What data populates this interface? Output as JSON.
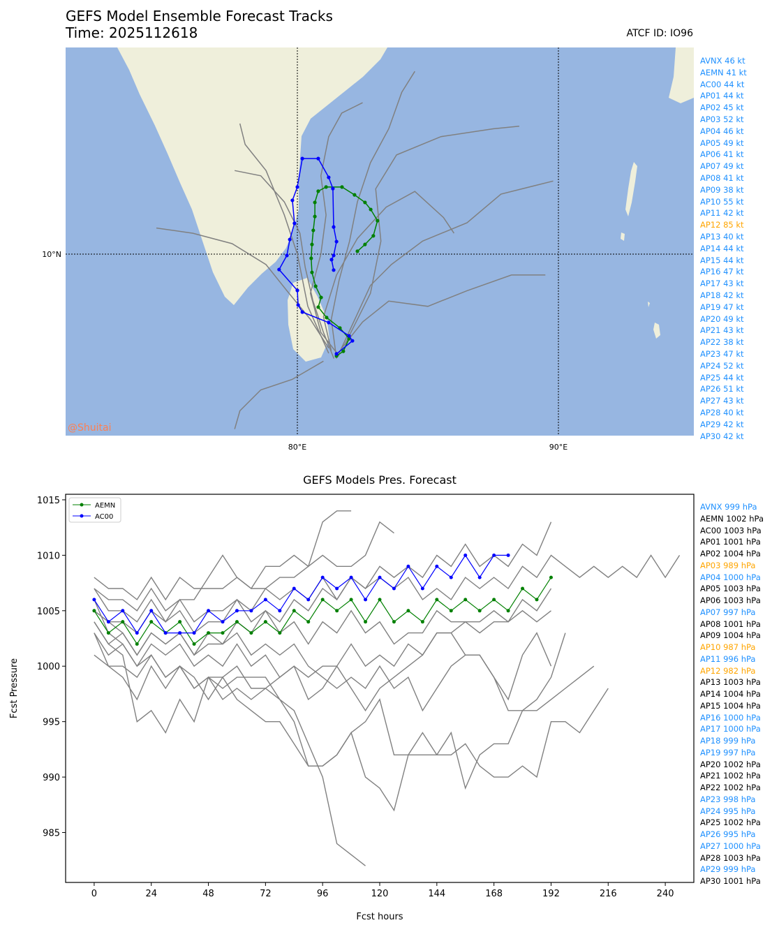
{
  "header": {
    "title": "GEFS Model Ensemble Forecast Tracks",
    "time": "Time: 2025112618",
    "atcf": "ATCF ID: IO96"
  },
  "colors": {
    "ocean": "#97b6e1",
    "land": "#efefdb",
    "track": "#808080",
    "aemn": "#008000",
    "ac00": "#0000ff",
    "blue_text": "#1e90ff",
    "orange_text": "#ffa500",
    "watermark": "#ff7f50"
  },
  "map": {
    "watermark": "@Shuitai",
    "lat_label": "10°N",
    "lon_labels": [
      "80°E",
      "90°E"
    ],
    "extent": {
      "lon": [
        71.1,
        95.2
      ],
      "lat": [
        3.05,
        17.9
      ]
    },
    "aemn_track": [
      [
        81.5,
        6.1
      ],
      [
        81.76,
        6.28
      ],
      [
        81.98,
        6.76
      ],
      [
        81.63,
        7.17
      ],
      [
        81.12,
        7.57
      ],
      [
        80.8,
        7.97
      ],
      [
        80.91,
        8.34
      ],
      [
        80.7,
        8.77
      ],
      [
        80.56,
        9.3
      ],
      [
        80.53,
        9.84
      ],
      [
        80.56,
        10.37
      ],
      [
        80.61,
        10.91
      ],
      [
        80.67,
        11.44
      ],
      [
        80.67,
        11.98
      ],
      [
        80.8,
        12.41
      ],
      [
        81.1,
        12.57
      ],
      [
        81.71,
        12.57
      ],
      [
        82.19,
        12.27
      ],
      [
        82.59,
        11.98
      ],
      [
        82.81,
        11.71
      ],
      [
        83.07,
        11.28
      ],
      [
        82.91,
        10.7
      ],
      [
        82.59,
        10.37
      ],
      [
        82.3,
        10.11
      ]
    ],
    "ac00_track": [
      [
        81.5,
        6.18
      ],
      [
        82.11,
        6.68
      ],
      [
        81.98,
        6.87
      ],
      [
        81.2,
        7.38
      ],
      [
        80.19,
        7.78
      ],
      [
        80.03,
        8.05
      ],
      [
        80.0,
        8.61
      ],
      [
        79.3,
        9.41
      ],
      [
        79.6,
        9.95
      ],
      [
        79.71,
        10.56
      ],
      [
        79.89,
        11.18
      ],
      [
        79.81,
        12.06
      ],
      [
        80.0,
        12.57
      ],
      [
        80.19,
        13.66
      ],
      [
        80.8,
        13.66
      ],
      [
        81.2,
        12.94
      ],
      [
        81.36,
        12.51
      ],
      [
        81.39,
        11.04
      ],
      [
        81.5,
        10.48
      ],
      [
        81.39,
        9.95
      ],
      [
        81.31,
        9.79
      ],
      [
        81.39,
        9.39
      ]
    ],
    "gray_tracks": [
      [
        [
          81.4,
          6.0
        ],
        [
          81.0,
          7.0
        ],
        [
          80.6,
          8.2
        ],
        [
          80.3,
          9.5
        ],
        [
          80.1,
          10.8
        ],
        [
          79.5,
          12.0
        ],
        [
          78.6,
          13.0
        ],
        [
          77.6,
          13.2
        ]
      ],
      [
        [
          81.6,
          6.2
        ],
        [
          82.2,
          7.5
        ],
        [
          82.8,
          8.8
        ],
        [
          83.6,
          9.6
        ],
        [
          84.8,
          10.5
        ],
        [
          86.5,
          11.2
        ],
        [
          87.8,
          12.3
        ],
        [
          89.8,
          12.8
        ]
      ],
      [
        [
          81.7,
          6.4
        ],
        [
          82.5,
          7.4
        ],
        [
          83.5,
          8.2
        ],
        [
          85.0,
          8.0
        ],
        [
          86.5,
          8.6
        ],
        [
          88.2,
          9.2
        ],
        [
          89.5,
          9.2
        ]
      ],
      [
        [
          81.2,
          6.4
        ],
        [
          80.5,
          7.5
        ],
        [
          79.6,
          8.6
        ],
        [
          78.8,
          9.6
        ],
        [
          77.5,
          10.4
        ],
        [
          76.0,
          10.8
        ],
        [
          74.6,
          11.0
        ]
      ],
      [
        [
          81.5,
          6.0
        ],
        [
          81.3,
          7.5
        ],
        [
          81.6,
          9.0
        ],
        [
          82.0,
          10.5
        ],
        [
          82.3,
          12.0
        ],
        [
          82.8,
          13.5
        ],
        [
          83.5,
          14.8
        ],
        [
          84.0,
          16.2
        ],
        [
          84.5,
          17.0
        ]
      ],
      [
        [
          81.3,
          6.3
        ],
        [
          81.0,
          7.6
        ],
        [
          81.5,
          9.2
        ],
        [
          82.3,
          10.6
        ],
        [
          83.4,
          11.8
        ],
        [
          84.5,
          12.4
        ],
        [
          85.6,
          11.4
        ],
        [
          86.0,
          10.8
        ]
      ],
      [
        [
          81.0,
          5.9
        ],
        [
          79.8,
          5.2
        ],
        [
          78.6,
          4.8
        ],
        [
          77.8,
          4.0
        ],
        [
          77.6,
          3.3
        ]
      ],
      [
        [
          81.8,
          6.5
        ],
        [
          82.8,
          8.5
        ],
        [
          83.2,
          10.5
        ],
        [
          83.0,
          12.5
        ],
        [
          83.8,
          13.8
        ],
        [
          85.5,
          14.5
        ],
        [
          87.5,
          14.8
        ],
        [
          88.5,
          14.9
        ]
      ],
      [
        [
          81.2,
          6.2
        ],
        [
          80.4,
          8.0
        ],
        [
          80.0,
          10.0
        ],
        [
          79.5,
          11.5
        ],
        [
          78.8,
          13.2
        ],
        [
          78.0,
          14.2
        ],
        [
          77.8,
          15.0
        ]
      ],
      [
        [
          81.6,
          6.1
        ],
        [
          80.9,
          7.0
        ],
        [
          80.5,
          8.5
        ],
        [
          80.9,
          10.0
        ],
        [
          81.1,
          11.5
        ],
        [
          80.9,
          13.0
        ],
        [
          81.2,
          14.5
        ],
        [
          81.7,
          15.4
        ],
        [
          82.5,
          15.8
        ]
      ]
    ]
  },
  "wind_list": [
    {
      "text": "AVNX 46 kt",
      "color": "#1e90ff"
    },
    {
      "text": "AEMN 41 kt",
      "color": "#1e90ff"
    },
    {
      "text": "AC00 44 kt",
      "color": "#1e90ff"
    },
    {
      "text": "AP01 44 kt",
      "color": "#1e90ff"
    },
    {
      "text": "AP02 45 kt",
      "color": "#1e90ff"
    },
    {
      "text": "AP03 52 kt",
      "color": "#1e90ff"
    },
    {
      "text": "AP04 46 kt",
      "color": "#1e90ff"
    },
    {
      "text": "AP05 49 kt",
      "color": "#1e90ff"
    },
    {
      "text": "AP06 41 kt",
      "color": "#1e90ff"
    },
    {
      "text": "AP07 49 kt",
      "color": "#1e90ff"
    },
    {
      "text": "AP08 41 kt",
      "color": "#1e90ff"
    },
    {
      "text": "AP09 38 kt",
      "color": "#1e90ff"
    },
    {
      "text": "AP10 55 kt",
      "color": "#1e90ff"
    },
    {
      "text": "AP11 42 kt",
      "color": "#1e90ff"
    },
    {
      "text": "AP12 85 kt",
      "color": "#ffa500"
    },
    {
      "text": "AP13 40 kt",
      "color": "#1e90ff"
    },
    {
      "text": "AP14 44 kt",
      "color": "#1e90ff"
    },
    {
      "text": "AP15 44 kt",
      "color": "#1e90ff"
    },
    {
      "text": "AP16 47 kt",
      "color": "#1e90ff"
    },
    {
      "text": "AP17 43 kt",
      "color": "#1e90ff"
    },
    {
      "text": "AP18 42 kt",
      "color": "#1e90ff"
    },
    {
      "text": "AP19 47 kt",
      "color": "#1e90ff"
    },
    {
      "text": "AP20 49 kt",
      "color": "#1e90ff"
    },
    {
      "text": "AP21 43 kt",
      "color": "#1e90ff"
    },
    {
      "text": "AP22 38 kt",
      "color": "#1e90ff"
    },
    {
      "text": "AP23 47 kt",
      "color": "#1e90ff"
    },
    {
      "text": "AP24 52 kt",
      "color": "#1e90ff"
    },
    {
      "text": "AP25 44 kt",
      "color": "#1e90ff"
    },
    {
      "text": "AP26 51 kt",
      "color": "#1e90ff"
    },
    {
      "text": "AP27 43 kt",
      "color": "#1e90ff"
    },
    {
      "text": "AP28 40 kt",
      "color": "#1e90ff"
    },
    {
      "text": "AP29 42 kt",
      "color": "#1e90ff"
    },
    {
      "text": "AP30 42 kt",
      "color": "#1e90ff"
    }
  ],
  "pres_list": [
    {
      "text": "AVNX 999 hPa",
      "color": "#1e90ff"
    },
    {
      "text": "AEMN 1002 hPa",
      "color": "#000000"
    },
    {
      "text": "AC00 1003 hPa",
      "color": "#000000"
    },
    {
      "text": "AP01 1001 hPa",
      "color": "#000000"
    },
    {
      "text": "AP02 1004 hPa",
      "color": "#000000"
    },
    {
      "text": "AP03 989 hPa",
      "color": "#ffa500"
    },
    {
      "text": "AP04 1000 hPa",
      "color": "#1e90ff"
    },
    {
      "text": "AP05 1003 hPa",
      "color": "#000000"
    },
    {
      "text": "AP06 1003 hPa",
      "color": "#000000"
    },
    {
      "text": "AP07 997 hPa",
      "color": "#1e90ff"
    },
    {
      "text": "AP08 1001 hPa",
      "color": "#000000"
    },
    {
      "text": "AP09 1004 hPa",
      "color": "#000000"
    },
    {
      "text": "AP10 987 hPa",
      "color": "#ffa500"
    },
    {
      "text": "AP11 996 hPa",
      "color": "#1e90ff"
    },
    {
      "text": "AP12 982 hPa",
      "color": "#ffa500"
    },
    {
      "text": "AP13 1003 hPa",
      "color": "#000000"
    },
    {
      "text": "AP14 1004 hPa",
      "color": "#000000"
    },
    {
      "text": "AP15 1004 hPa",
      "color": "#000000"
    },
    {
      "text": "AP16 1000 hPa",
      "color": "#1e90ff"
    },
    {
      "text": "AP17 1000 hPa",
      "color": "#1e90ff"
    },
    {
      "text": "AP18 999 hPa",
      "color": "#1e90ff"
    },
    {
      "text": "AP19 997 hPa",
      "color": "#1e90ff"
    },
    {
      "text": "AP20 1002 hPa",
      "color": "#000000"
    },
    {
      "text": "AP21 1002 hPa",
      "color": "#000000"
    },
    {
      "text": "AP22 1002 hPa",
      "color": "#000000"
    },
    {
      "text": "AP23 998 hPa",
      "color": "#1e90ff"
    },
    {
      "text": "AP24 995 hPa",
      "color": "#1e90ff"
    },
    {
      "text": "AP25 1002 hPa",
      "color": "#000000"
    },
    {
      "text": "AP26 995 hPa",
      "color": "#1e90ff"
    },
    {
      "text": "AP27 1000 hPa",
      "color": "#1e90ff"
    },
    {
      "text": "AP28 1003 hPa",
      "color": "#000000"
    },
    {
      "text": "AP29 999 hPa",
      "color": "#1e90ff"
    },
    {
      "text": "AP30 1001 hPa",
      "color": "#000000"
    }
  ],
  "chart_data": {
    "type": "line",
    "title": "GEFS Models Pres. Forecast",
    "xlabel": "Fcst hours",
    "ylabel": "Fcst Pressure",
    "xlim": [
      -12,
      252
    ],
    "ylim": [
      980.5,
      1015.5
    ],
    "xticks": [
      0,
      24,
      48,
      72,
      96,
      120,
      144,
      168,
      192,
      216,
      240
    ],
    "yticks": [
      985,
      990,
      995,
      1000,
      1005,
      1010,
      1015
    ],
    "legend": {
      "position": "top-left",
      "entries": [
        "AEMN",
        "AC00"
      ]
    },
    "series": [
      {
        "name": "AEMN",
        "highlight": true,
        "x_start": 0,
        "step": 6,
        "values": [
          1005,
          1003,
          1004,
          1002,
          1004,
          1003,
          1004,
          1002,
          1003,
          1003,
          1004,
          1003,
          1004,
          1003,
          1005,
          1004,
          1006,
          1005,
          1006,
          1004,
          1006,
          1004,
          1005,
          1004,
          1006,
          1005,
          1006,
          1005,
          1006,
          1005,
          1007,
          1006,
          1008
        ]
      },
      {
        "name": "AC00",
        "highlight": true,
        "x_start": 0,
        "step": 6,
        "values": [
          1006,
          1004,
          1005,
          1003,
          1005,
          1003,
          1003,
          1003,
          1005,
          1004,
          1005,
          1005,
          1006,
          1005,
          1007,
          1006,
          1008,
          1007,
          1008,
          1006,
          1008,
          1007,
          1009,
          1007,
          1009,
          1008,
          1010,
          1008,
          1010,
          1010
        ]
      },
      {
        "name": "member",
        "x_start": 0,
        "step": 6,
        "values": [
          1008,
          1007,
          1007,
          1006,
          1008,
          1006,
          1008,
          1007,
          1007,
          1007,
          1008,
          1007,
          1009,
          1009,
          1010,
          1009,
          1013,
          1014,
          1014
        ]
      },
      {
        "name": "member",
        "x_start": 0,
        "step": 6,
        "values": [
          1007,
          1006,
          1006,
          1005,
          1007,
          1005,
          1006,
          1006,
          1008,
          1010,
          1008,
          1007,
          1007,
          1008,
          1008,
          1009,
          1010,
          1009,
          1009,
          1010,
          1013,
          1012
        ]
      },
      {
        "name": "member",
        "x_start": 0,
        "step": 6,
        "values": [
          1004,
          1002,
          1001,
          995,
          996,
          994,
          997,
          995,
          999,
          998,
          999,
          999,
          999,
          997,
          996,
          993,
          990,
          984,
          983,
          982
        ]
      },
      {
        "name": "member",
        "x_start": 0,
        "step": 6,
        "values": [
          1003,
          1000,
          999,
          997,
          1000,
          998,
          1000,
          999,
          997,
          999,
          997,
          996,
          995,
          995,
          993,
          991,
          991,
          992,
          994,
          990,
          989,
          987,
          992,
          992,
          992,
          994,
          989,
          992,
          993,
          993,
          996,
          996,
          997,
          998,
          999,
          1000
        ]
      },
      {
        "name": "member",
        "x_start": 0,
        "step": 6,
        "values": [
          1001,
          1000,
          1000,
          999,
          1001,
          999,
          1000,
          998,
          999,
          999,
          1000,
          998,
          998,
          997,
          995,
          991,
          991,
          992,
          994,
          995,
          997,
          992,
          992,
          994,
          992,
          992,
          993,
          991,
          990,
          990,
          991,
          990,
          995,
          995,
          994,
          996,
          998
        ]
      },
      {
        "name": "member",
        "x_start": 0,
        "step": 6,
        "values": [
          1005,
          1004,
          1003,
          1001,
          1003,
          1002,
          1003,
          1001,
          1002,
          1002,
          1003,
          1001,
          1002,
          1001,
          1002,
          1000,
          999,
          998,
          999,
          998,
          1000,
          998,
          999,
          996,
          998,
          1000,
          1001,
          1001,
          999,
          996,
          996,
          997,
          999,
          1003
        ]
      },
      {
        "name": "member",
        "x_start": 0,
        "step": 6,
        "values": [
          1006,
          1003,
          1002,
          1000,
          1002,
          1001,
          1002,
          1000,
          1001,
          1000,
          1002,
          1000,
          1001,
          999,
          1000,
          997,
          998,
          1000,
          998,
          996,
          998,
          999,
          1000,
          1001,
          1003,
          1003,
          1001,
          1001,
          999,
          997,
          1001,
          1003,
          1000
        ]
      },
      {
        "name": "member",
        "x_start": 0,
        "step": 6,
        "values": [
          1007,
          1005,
          1005,
          1004,
          1006,
          1004,
          1006,
          1004,
          1005,
          1005,
          1006,
          1005,
          1007,
          1006,
          1007,
          1006,
          1008,
          1006,
          1008,
          1007,
          1009,
          1008,
          1009,
          1008,
          1010,
          1009,
          1011,
          1009,
          1010,
          1009,
          1011,
          1010,
          1013
        ]
      },
      {
        "name": "member",
        "x_start": 0,
        "step": 6,
        "values": [
          1005,
          1004,
          1004,
          1003,
          1005,
          1004,
          1005,
          1003,
          1004,
          1004,
          1006,
          1004,
          1005,
          1003,
          1004,
          1002,
          1004,
          1003,
          1005,
          1003,
          1004,
          1002,
          1003,
          1003,
          1005,
          1004,
          1004,
          1003,
          1004,
          1004,
          1005,
          1004,
          1005
        ]
      },
      {
        "name": "member",
        "x_start": 0,
        "step": 6,
        "values": [
          1004,
          1002,
          1003,
          1001,
          1003,
          1002,
          1003,
          1001,
          1003,
          1002,
          1004,
          1003,
          1005,
          1004,
          1006,
          1005,
          1007,
          1006,
          1008,
          1007,
          1008,
          1007,
          1008,
          1006,
          1007,
          1006,
          1008,
          1007,
          1008,
          1007,
          1009,
          1008,
          1010,
          1009,
          1008,
          1009,
          1008,
          1009,
          1008,
          1010,
          1008,
          1010
        ]
      },
      {
        "name": "member",
        "x_start": 0,
        "step": 6,
        "values": [
          1003,
          1001,
          1002,
          1000,
          1001,
          999,
          1000,
          998,
          999,
          997,
          998,
          997,
          998,
          999,
          1000,
          999,
          1000,
          1000,
          1002,
          1000,
          1001,
          1000,
          1002,
          1001,
          1003,
          1003,
          1004,
          1004,
          1005,
          1004,
          1006,
          1005,
          1007
        ]
      }
    ]
  }
}
